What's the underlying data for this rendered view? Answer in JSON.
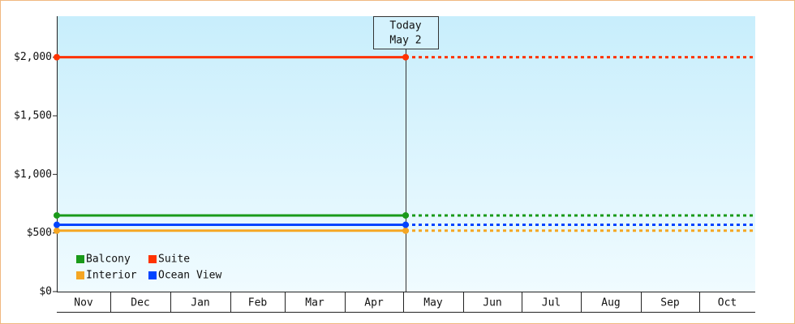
{
  "chart_data": {
    "type": "line",
    "annotation": [
      "Today",
      "May 2"
    ],
    "categories": [
      "Nov",
      "Dec",
      "Jan",
      "Feb",
      "Mar",
      "Apr",
      "May",
      "Jun",
      "Jul",
      "Aug",
      "Sep",
      "Oct"
    ],
    "series": [
      {
        "name": "Balcony",
        "color": "#1a9a1a",
        "value": 650
      },
      {
        "name": "Suite",
        "color": "#ff3300",
        "value": 2000
      },
      {
        "name": "Interior",
        "color": "#f5a623",
        "value": 520
      },
      {
        "name": "Ocean View",
        "color": "#0044ff",
        "value": 570
      }
    ],
    "ylim": [
      0,
      2350
    ],
    "yticks": [
      {
        "value": 0,
        "label": "$0"
      },
      {
        "value": 500,
        "label": "$500"
      },
      {
        "value": 1000,
        "label": "$1,000"
      },
      {
        "value": 1500,
        "label": "$1,500"
      },
      {
        "value": 2000,
        "label": "$2,000"
      }
    ]
  }
}
